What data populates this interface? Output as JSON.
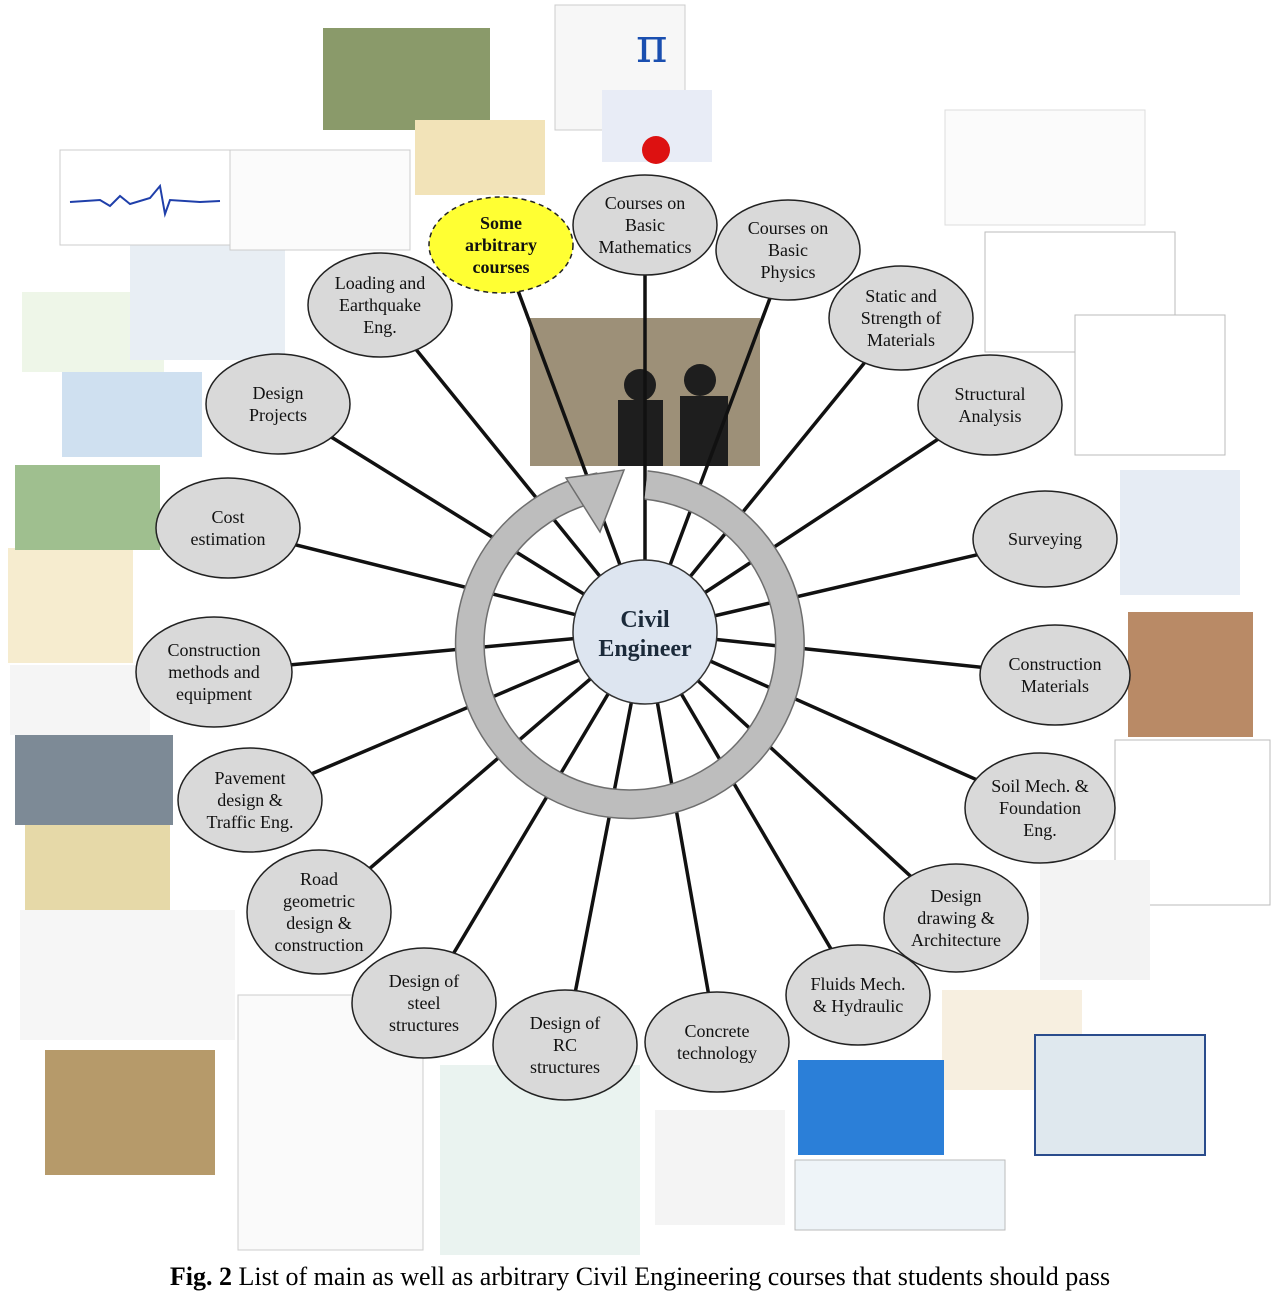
{
  "center": {
    "line1": "Civil",
    "line2": "Engineer"
  },
  "topics": [
    {
      "lines": [
        "Courses on",
        "Basic",
        "Mathematics"
      ]
    },
    {
      "lines": [
        "Courses on",
        "Basic",
        "Physics"
      ]
    },
    {
      "lines": [
        "Static and",
        "Strength of",
        "Materials"
      ]
    },
    {
      "lines": [
        "Structural",
        "Analysis"
      ]
    },
    {
      "lines": [
        "Surveying"
      ]
    },
    {
      "lines": [
        "Construction",
        "Materials"
      ]
    },
    {
      "lines": [
        "Soil Mech. &",
        "Foundation",
        "Eng."
      ]
    },
    {
      "lines": [
        "Design",
        "drawing &",
        "Architecture"
      ]
    },
    {
      "lines": [
        "Fluids Mech.",
        "& Hydraulic"
      ]
    },
    {
      "lines": [
        "Concrete",
        "technology"
      ]
    },
    {
      "lines": [
        "Design of",
        "RC",
        "structures"
      ]
    },
    {
      "lines": [
        "Design of",
        "steel",
        "structures"
      ]
    },
    {
      "lines": [
        "Road",
        "geometric",
        "design &",
        "construction"
      ]
    },
    {
      "lines": [
        "Pavement",
        "design &",
        "Traffic Eng."
      ]
    },
    {
      "lines": [
        "Construction",
        "methods and",
        "equipment"
      ]
    },
    {
      "lines": [
        "Cost",
        "estimation"
      ]
    },
    {
      "lines": [
        "Design",
        "Projects"
      ]
    },
    {
      "lines": [
        "Loading and",
        "Earthquake",
        "Eng."
      ]
    },
    {
      "lines": [
        "Some",
        "arbitrary",
        "courses"
      ],
      "highlight": true
    }
  ],
  "colors": {
    "ellipse_fill": "#d9d9d9",
    "highlight_fill": "#ffff33",
    "center_fill": "#dde5f0",
    "ring_fill": "#bdbdbd"
  },
  "caption": {
    "label": "Fig. 2",
    "text": " List of main as well as arbitrary Civil Engineering courses that students should pass"
  }
}
